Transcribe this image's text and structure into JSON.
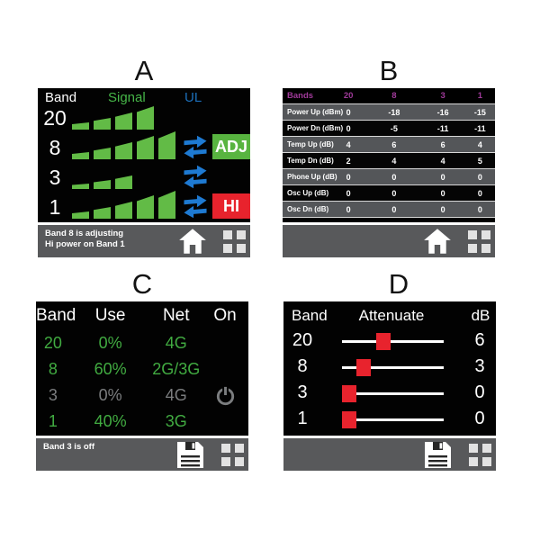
{
  "figure": {
    "panel_labels": [
      "A",
      "B",
      "C",
      "D"
    ]
  },
  "colors": {
    "statusbar_bg": "#58595b",
    "green_bar": "#62bb46",
    "green_text": "#41ab41",
    "signal_green": "#46b648",
    "ul_blue": "#1c6fba",
    "arrow_blue": "#1e7ad2",
    "adj_green": "#58b440",
    "hi_red": "#e8232d",
    "magenta": "#a03a9a",
    "table_row_gray": "#545659",
    "off_gray": "#7b7d7f",
    "slider_red": "#e8232d"
  },
  "icons": {
    "home": "home-icon",
    "menu": "grid-menu-icon",
    "save": "floppy-save-icon",
    "power": "power-icon",
    "ul_sync": "sync-arrows-icon"
  },
  "panels": {
    "a": {
      "title": "A",
      "header": {
        "band": "Band",
        "signal": "Signal",
        "ul": "UL"
      },
      "rows": [
        {
          "band": "20",
          "signal_bars": 4,
          "ul_active": false,
          "badge": ""
        },
        {
          "band": "8",
          "signal_bars": 5,
          "ul_active": true,
          "badge": "ADJ"
        },
        {
          "band": "3",
          "signal_bars": 3,
          "ul_active": true,
          "badge": ""
        },
        {
          "band": "1",
          "signal_bars": 5,
          "ul_active": true,
          "badge": "HI"
        }
      ],
      "status": [
        "Band 8 is adjusting",
        "Hi power on Band 1"
      ]
    },
    "b": {
      "title": "B",
      "table": {
        "header": [
          "Bands",
          "20",
          "8",
          "3",
          "1"
        ],
        "rows": [
          {
            "label": "Power Up (dBm)",
            "values": [
              "0",
              "-18",
              "-16",
              "-15"
            ]
          },
          {
            "label": "Power Dn (dBm)",
            "values": [
              "0",
              "-5",
              "-11",
              "-11"
            ]
          },
          {
            "label": "Temp Up (dB)",
            "values": [
              "4",
              "6",
              "6",
              "4"
            ]
          },
          {
            "label": "Temp Dn (dB)",
            "values": [
              "2",
              "4",
              "4",
              "5"
            ]
          },
          {
            "label": "Phone Up (dB)",
            "values": [
              "0",
              "0",
              "0",
              "0"
            ]
          },
          {
            "label": "Osc Up (dB)",
            "values": [
              "0",
              "0",
              "0",
              "0"
            ]
          },
          {
            "label": "Osc Dn (dB)",
            "values": [
              "0",
              "0",
              "0",
              "0"
            ]
          }
        ]
      }
    },
    "c": {
      "title": "C",
      "header": [
        "Band",
        "Use",
        "Net",
        "On"
      ],
      "rows": [
        {
          "band": "20",
          "use": "0%",
          "net": "4G",
          "off": false
        },
        {
          "band": "8",
          "use": "60%",
          "net": "2G/3G",
          "off": false
        },
        {
          "band": "3",
          "use": "0%",
          "net": "4G",
          "off": true
        },
        {
          "band": "1",
          "use": "40%",
          "net": "3G",
          "off": false
        }
      ],
      "status": "Band 3 is off"
    },
    "d": {
      "title": "D",
      "header": {
        "band": "Band",
        "attenuate": "Attenuate",
        "db": "dB"
      },
      "rows": [
        {
          "band": "20",
          "db": "6",
          "pct": 41
        },
        {
          "band": "8",
          "db": "3",
          "pct": 21
        },
        {
          "band": "3",
          "db": "0",
          "pct": 7
        },
        {
          "band": "1",
          "db": "0",
          "pct": 7
        }
      ]
    }
  }
}
